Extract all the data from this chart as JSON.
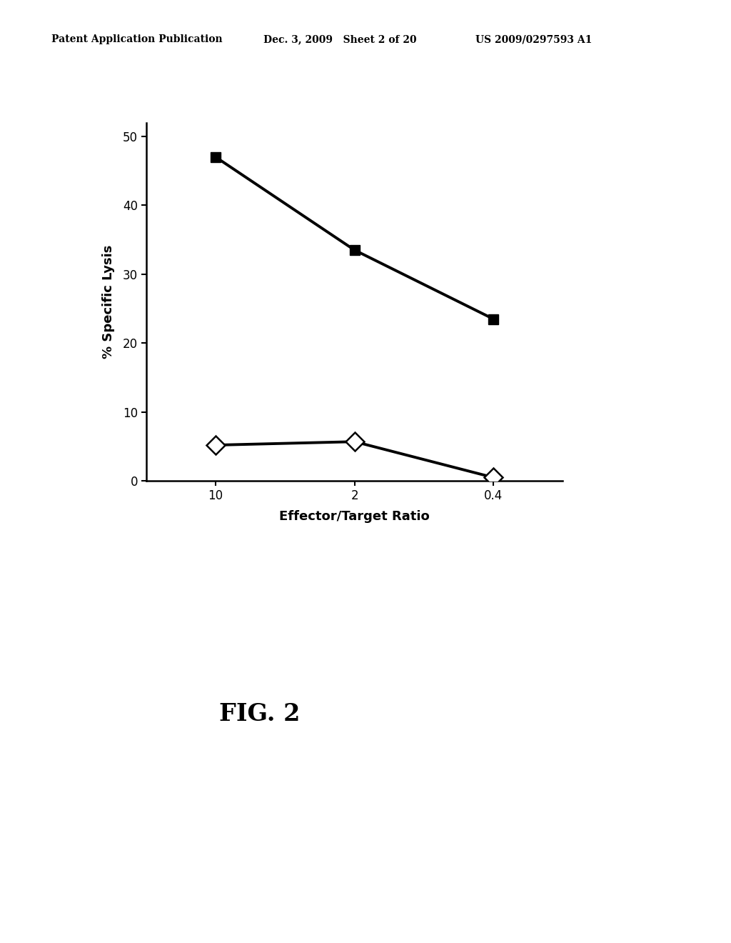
{
  "header_left": "Patent Application Publication",
  "header_mid": "Dec. 3, 2009   Sheet 2 of 20",
  "header_right": "US 2009/0297593 A1",
  "fig_label": "FIG. 2",
  "xlabel": "Effector/Target Ratio",
  "ylabel": "% Specific Lysis",
  "x_positions": [
    0,
    1,
    2
  ],
  "x_tick_labels": [
    "10",
    "2",
    "0.4"
  ],
  "series1_y": [
    47,
    33.5,
    23.5
  ],
  "series2_y": [
    5.2,
    5.7,
    0.5
  ],
  "ylim": [
    0,
    52
  ],
  "yticks": [
    0,
    10,
    20,
    30,
    40,
    50
  ],
  "background_color": "#ffffff",
  "line_color": "#000000",
  "marker1": "s",
  "marker2": "D",
  "markersize1": 10,
  "markersize2": 13,
  "linewidth": 2.8,
  "axis_label_fontsize": 13,
  "tick_fontsize": 12,
  "header_fontsize": 10,
  "fig_label_fontsize": 24
}
